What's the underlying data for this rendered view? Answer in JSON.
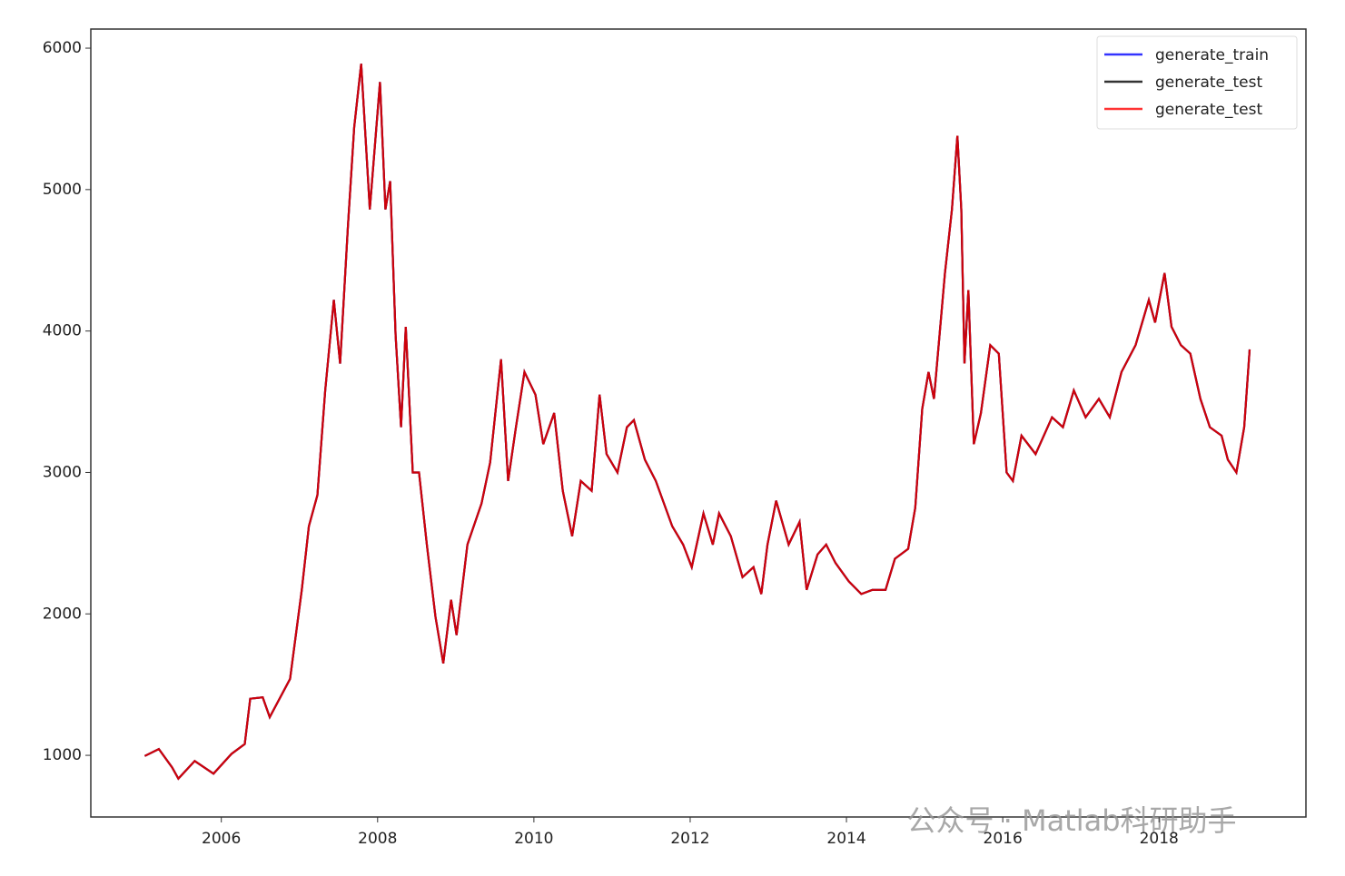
{
  "chart_data": {
    "type": "line",
    "x": [
      2005.02,
      2005.2,
      2005.37,
      2005.45,
      2005.66,
      2005.9,
      2006.13,
      2006.3,
      2006.37,
      2006.53,
      2006.62,
      2006.88,
      2007.03,
      2007.12,
      2007.23,
      2007.33,
      2007.44,
      2007.52,
      2007.62,
      2007.7,
      2007.79,
      2007.9,
      2008.03,
      2008.1,
      2008.16,
      2008.23,
      2008.3,
      2008.36,
      2008.45,
      2008.53,
      2008.63,
      2008.74,
      2008.84,
      2008.94,
      2009.01,
      2009.15,
      2009.33,
      2009.44,
      2009.58,
      2009.67,
      2009.77,
      2009.88,
      2010.02,
      2010.12,
      2010.26,
      2010.37,
      2010.49,
      2010.6,
      2010.74,
      2010.84,
      2010.93,
      2011.07,
      2011.19,
      2011.28,
      2011.42,
      2011.56,
      2011.77,
      2011.91,
      2012.02,
      2012.17,
      2012.29,
      2012.37,
      2012.52,
      2012.67,
      2012.81,
      2012.91,
      2012.99,
      2013.1,
      2013.26,
      2013.4,
      2013.49,
      2013.63,
      2013.74,
      2013.86,
      2014.03,
      2014.19,
      2014.33,
      2014.5,
      2014.62,
      2014.79,
      2014.88,
      2014.97,
      2015.05,
      2015.12,
      2015.26,
      2015.35,
      2015.42,
      2015.47,
      2015.51,
      2015.56,
      2015.63,
      2015.72,
      2015.84,
      2015.95,
      2016.05,
      2016.13,
      2016.24,
      2016.42,
      2016.63,
      2016.77,
      2016.91,
      2017.06,
      2017.23,
      2017.37,
      2017.52,
      2017.7,
      2017.87,
      2017.95,
      2018.07,
      2018.16,
      2018.28,
      2018.4,
      2018.53,
      2018.65,
      2018.8,
      2018.88,
      2018.99,
      2019.09,
      2019.16
    ],
    "series": [
      {
        "name": "generate_train",
        "color": "#0000ff",
        "values": [
          995,
          1045,
          915,
          835,
          960,
          870,
          1010,
          1080,
          1400,
          1410,
          1270,
          1540,
          2170,
          2620,
          2840,
          3580,
          4220,
          3770,
          4740,
          5440,
          5890,
          4860,
          5760,
          4860,
          5060,
          3970,
          3320,
          4030,
          3000,
          3000,
          2490,
          1980,
          1650,
          2100,
          1850,
          2490,
          2780,
          3070,
          3800,
          2940,
          3320,
          3710,
          3550,
          3200,
          3420,
          2870,
          2550,
          2940,
          2870,
          3550,
          3130,
          3000,
          3320,
          3370,
          3090,
          2940,
          2620,
          2490,
          2330,
          2710,
          2490,
          2710,
          2550,
          2260,
          2330,
          2140,
          2490,
          2800,
          2490,
          2650,
          2170,
          2420,
          2490,
          2360,
          2230,
          2140,
          2170,
          2170,
          2390,
          2460,
          2750,
          3450,
          3710,
          3520,
          4410,
          4860,
          5380,
          4860,
          3770,
          4290,
          3200,
          3420,
          3900,
          3840,
          3000,
          2940,
          3260,
          3130,
          3390,
          3320,
          3580,
          3390,
          3520,
          3390,
          3710,
          3900,
          4220,
          4060,
          4410,
          4030,
          3900,
          3840,
          3520,
          3320,
          3260,
          3090,
          3000,
          3320,
          3870
        ]
      },
      {
        "name": "generate_test",
        "color": "#000000",
        "values": [
          995,
          1045,
          915,
          835,
          960,
          870,
          1010,
          1080,
          1400,
          1410,
          1270,
          1540,
          2170,
          2620,
          2840,
          3580,
          4220,
          3770,
          4740,
          5440,
          5890,
          4860,
          5760,
          4860,
          5060,
          3970,
          3320,
          4030,
          3000,
          3000,
          2490,
          1980,
          1650,
          2100,
          1850,
          2490,
          2780,
          3070,
          3800,
          2940,
          3320,
          3710,
          3550,
          3200,
          3420,
          2870,
          2550,
          2940,
          2870,
          3550,
          3130,
          3000,
          3320,
          3370,
          3090,
          2940,
          2620,
          2490,
          2330,
          2710,
          2490,
          2710,
          2550,
          2260,
          2330,
          2140,
          2490,
          2800,
          2490,
          2650,
          2170,
          2420,
          2490,
          2360,
          2230,
          2140,
          2170,
          2170,
          2390,
          2460,
          2750,
          3450,
          3710,
          3520,
          4410,
          4860,
          5380,
          4860,
          3770,
          4290,
          3200,
          3420,
          3900,
          3840,
          3000,
          2940,
          3260,
          3130,
          3390,
          3320,
          3580,
          3390,
          3520,
          3390,
          3710,
          3900,
          4220,
          4060,
          4410,
          4030,
          3900,
          3840,
          3520,
          3320,
          3260,
          3090,
          3000,
          3320,
          3870
        ]
      },
      {
        "name": "generate_test",
        "color": "#ff0000",
        "values": [
          995,
          1045,
          915,
          835,
          960,
          870,
          1010,
          1080,
          1400,
          1410,
          1270,
          1540,
          2170,
          2620,
          2840,
          3580,
          4220,
          3770,
          4740,
          5440,
          5890,
          4860,
          5760,
          4860,
          5060,
          3970,
          3320,
          4030,
          3000,
          3000,
          2490,
          1980,
          1650,
          2100,
          1850,
          2490,
          2780,
          3070,
          3800,
          2940,
          3320,
          3710,
          3550,
          3200,
          3420,
          2870,
          2550,
          2940,
          2870,
          3550,
          3130,
          3000,
          3320,
          3370,
          3090,
          2940,
          2620,
          2490,
          2330,
          2710,
          2490,
          2710,
          2550,
          2260,
          2330,
          2140,
          2490,
          2800,
          2490,
          2650,
          2170,
          2420,
          2490,
          2360,
          2230,
          2140,
          2170,
          2170,
          2390,
          2460,
          2750,
          3450,
          3710,
          3520,
          4410,
          4860,
          5380,
          4860,
          3770,
          4290,
          3200,
          3420,
          3900,
          3840,
          3000,
          2940,
          3260,
          3130,
          3390,
          3320,
          3580,
          3390,
          3520,
          3390,
          3710,
          3900,
          4220,
          4060,
          4410,
          4030,
          3900,
          3840,
          3520,
          3320,
          3260,
          3090,
          3000,
          3320,
          3870
        ]
      }
    ],
    "xlim": [
      2004.33,
      2019.88
    ],
    "xticks": [
      2006,
      2008,
      2010,
      2012,
      2014,
      2016,
      2018
    ],
    "ylim": [
      564,
      6135
    ],
    "yticks": [
      1000,
      2000,
      3000,
      4000,
      5000,
      6000
    ],
    "legend": "upper right",
    "annotation": "公众号 · Matlab科研助手"
  }
}
